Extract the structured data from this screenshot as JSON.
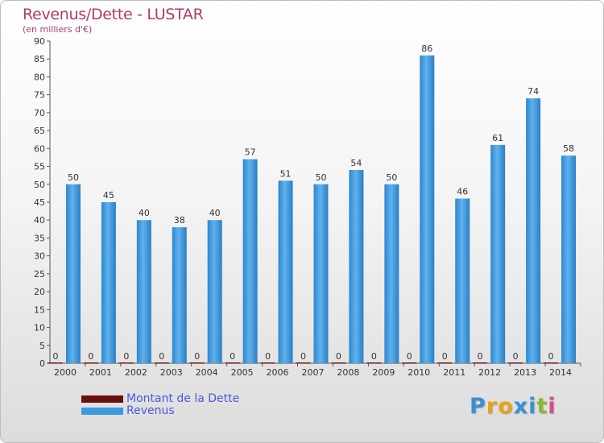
{
  "title": "Revenus/Dette - LUSTAR",
  "subtitle": "(en milliers d'€)",
  "logo_text": "Proxiti",
  "logo_colors": [
    "#3b8fd6",
    "#e8a21a",
    "#e8a21a",
    "#3b8fd6",
    "#3b8fd6",
    "#8ab82e",
    "#d94b8c"
  ],
  "colors": {
    "title": "#b03a6c",
    "revenus": "#3a9be0",
    "dette": "#6b0e0e",
    "legend_text": "#4a5ae0"
  },
  "chart_data": {
    "type": "bar",
    "title": "Revenus/Dette - LUSTAR",
    "subtitle": "(en milliers d'€)",
    "categories": [
      "2000",
      "2001",
      "2002",
      "2003",
      "2004",
      "2005",
      "2006",
      "2007",
      "2008",
      "2009",
      "2010",
      "2011",
      "2012",
      "2013",
      "2014"
    ],
    "series": [
      {
        "name": "Montant de la Dette",
        "color": "#6b0e0e",
        "values": [
          0,
          0,
          0,
          0,
          0,
          0,
          0,
          0,
          0,
          0,
          0,
          0,
          0,
          0,
          0
        ]
      },
      {
        "name": "Revenus",
        "color": "#3a9be0",
        "values": [
          50,
          45,
          40,
          38,
          40,
          57,
          51,
          50,
          54,
          50,
          86,
          46,
          61,
          74,
          58
        ]
      }
    ],
    "ylim": [
      0,
      90
    ],
    "yticks": [
      0,
      5,
      10,
      15,
      20,
      25,
      30,
      35,
      40,
      45,
      50,
      55,
      60,
      65,
      70,
      75,
      80,
      85,
      90
    ],
    "grid": false,
    "legend_position": "bottom-left"
  }
}
